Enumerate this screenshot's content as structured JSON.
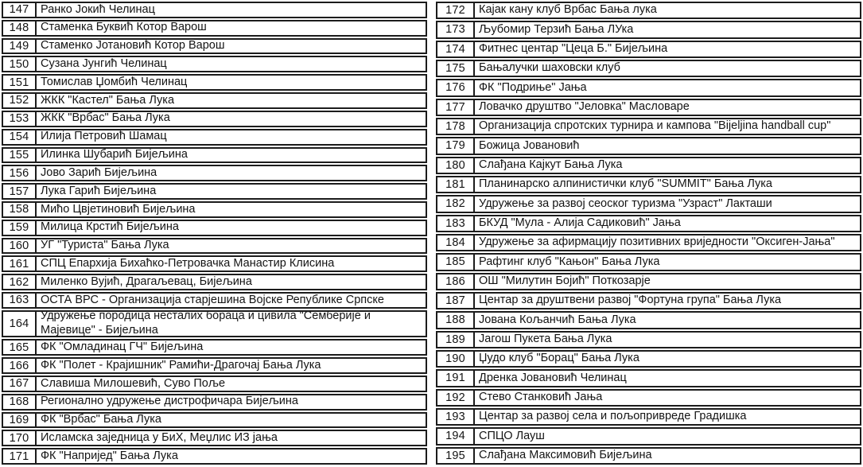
{
  "page": {
    "background_color": "#ffffff",
    "border_color": "#1c1c1c",
    "text_color": "#141414",
    "description_rows_range": "147-195"
  },
  "left_table": {
    "rows": [
      {
        "num": "147",
        "name": "Ранко Јокић Челинац"
      },
      {
        "num": "148",
        "name": "Стаменка Буквић Котор Варош"
      },
      {
        "num": "149",
        "name": "Стаменко Јотановић Котор Варош"
      },
      {
        "num": "150",
        "name": "Сузана Јунгић Челинац"
      },
      {
        "num": "151",
        "name": "Томислав Џомбић Челинац"
      },
      {
        "num": "152",
        "name": "ЖКК \"Кастел\" Бања Лука"
      },
      {
        "num": "153",
        "name": "ЖКК \"Врбас\" Бања Лука"
      },
      {
        "num": "154",
        "name": "Илија Петровић Шамац"
      },
      {
        "num": "155",
        "name": "Илинка Шубарић Бијељина"
      },
      {
        "num": "156",
        "name": "Јово Зарић Бијељина"
      },
      {
        "num": "157",
        "name": "Лука Гарић Бијељина"
      },
      {
        "num": "158",
        "name": "Мићо Цвјетиновић Бијељина"
      },
      {
        "num": "159",
        "name": "Милица Крстић Бијељина"
      },
      {
        "num": "160",
        "name": "УГ \"Туриста\" Бања Лука"
      },
      {
        "num": "161",
        "name": "СПЦ Епархија Бихаћко-Петровачка Манастир Клисина"
      },
      {
        "num": "162",
        "name": "Миленко Вујић, Драгаљевац, Бијељина"
      },
      {
        "num": "163",
        "name": "ОСТА ВРС - Организација старјешина Војске Републике Српске"
      },
      {
        "num": "164",
        "name": "Удружење породица несталих бораца и цивила \"Семберије и Мајевице\" - Бијељина"
      },
      {
        "num": "165",
        "name": "ФК \"Омладинац ГЧ\" Бијељина"
      },
      {
        "num": "166",
        "name": "ФК \"Полет - Крајишник\" Рамићи-Драгочај Бања Лука"
      },
      {
        "num": "167",
        "name": "Славиша Милошевић, Суво Поље"
      },
      {
        "num": "168",
        "name": "Регионално удружење дистрофичара Бијељина"
      },
      {
        "num": "169",
        "name": "ФК \"Врбас\" Бања Лука"
      },
      {
        "num": "170",
        "name": "Исламска заједница у БиХ, Меџлис ИЗ јања"
      },
      {
        "num": "171",
        "name": "ФК \"Напријед\" Бања Лука"
      }
    ]
  },
  "right_table": {
    "rows": [
      {
        "num": "172",
        "name": "Кајак кану клуб Врбас Бања лука"
      },
      {
        "num": "173",
        "name": "Љубомир Терзић Бања ЛУка"
      },
      {
        "num": "174",
        "name": "Фитнес центар \"Цеца Б.\" Бијељина"
      },
      {
        "num": "175",
        "name": "Бањалучки шаховски клуб"
      },
      {
        "num": "176",
        "name": "ФК \"Подриње\" Јања"
      },
      {
        "num": "177",
        "name": "Ловачко друштво \"Јеловка\" Масловаре"
      },
      {
        "num": "178",
        "name": "Организација спротских турнира и кампова \"Bijeljina handball cup\""
      },
      {
        "num": "179",
        "name": "Божица Јовановић"
      },
      {
        "num": "180",
        "name": "Слађана Кајкут Бања Лука"
      },
      {
        "num": "181",
        "name": "Планинарско алпинистички клуб \"SUMMIT\" Бања Лука"
      },
      {
        "num": "182",
        "name": "Удружење за развој сеоског туризма \"Узраст\" Лакташи"
      },
      {
        "num": "183",
        "name": "БКУД \"Мула - Алија Садиковић\" Јања"
      },
      {
        "num": "184",
        "name": "Удружење за афирмацију позитивних вриједности \"Оксиген-Јања\""
      },
      {
        "num": "185",
        "name": "Рафтинг клуб \"Кањон\" Бања Лука"
      },
      {
        "num": "186",
        "name": "ОШ \"Милутин Бојић\" Поткозарје"
      },
      {
        "num": "187",
        "name": "Центар за друштвени развој \"Фортуна група\" Бања Лука"
      },
      {
        "num": "188",
        "name": "Јована Кољанчић Бања Лука"
      },
      {
        "num": "189",
        "name": "Јагош Пукета Бања Лука"
      },
      {
        "num": "190",
        "name": "Џудо клуб \"Борац\" Бања Лука"
      },
      {
        "num": "191",
        "name": "Дренка Јовановић Челинац"
      },
      {
        "num": "192",
        "name": "Стево Станковић Јања"
      },
      {
        "num": "193",
        "name": "Центар за развој села и пољопривреде Градишка"
      },
      {
        "num": "194",
        "name": "СПЦО Лауш"
      },
      {
        "num": "195",
        "name": "Слађана Максимовић Бијељина"
      }
    ]
  }
}
